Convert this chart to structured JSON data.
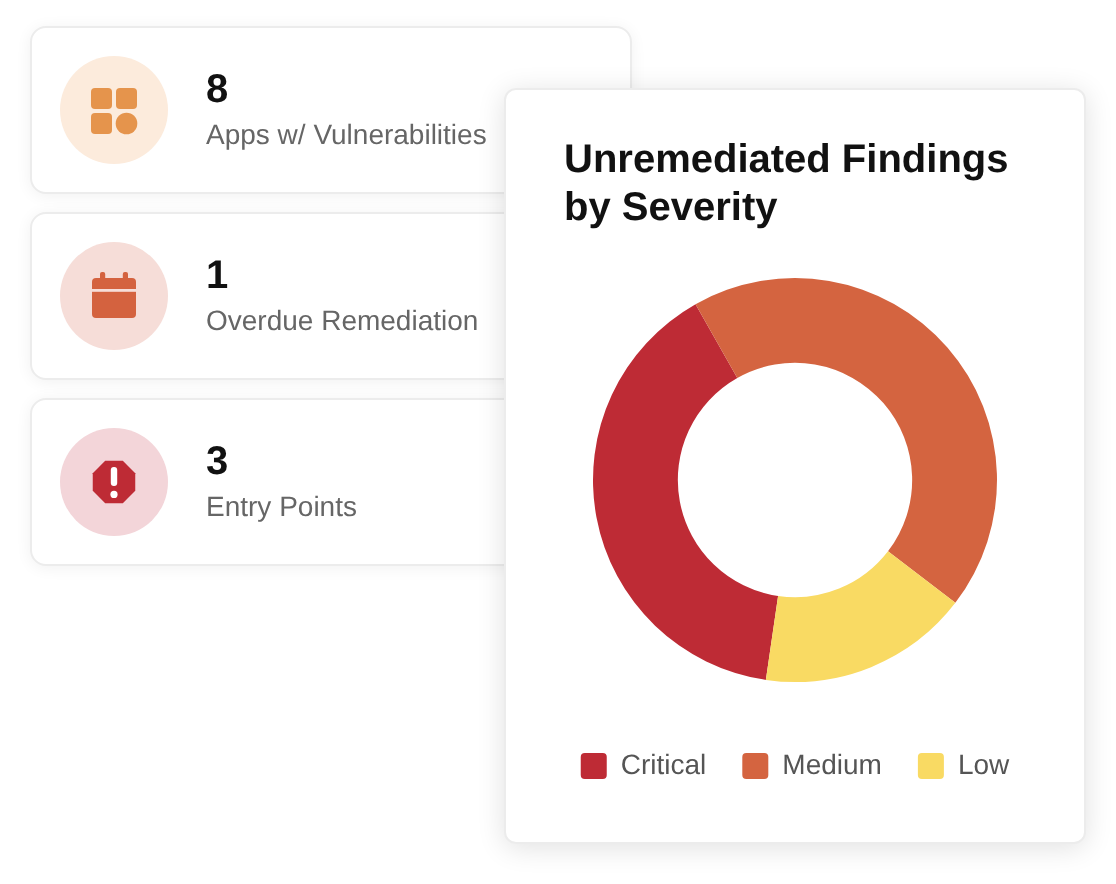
{
  "chart_data": [
    {
      "type": "other",
      "annotations": [
        "8",
        "Apps w/ Vulnerabilities",
        "1",
        "Overdue Remediation",
        "3",
        "Entry Points"
      ]
    },
    {
      "type": "donut",
      "title": "Unremediated Findings by Severity",
      "categories": [
        "Critical",
        "Medium",
        "Low"
      ],
      "values": [
        39.5,
        43.6,
        16.9
      ],
      "colors": [
        "#be2b35",
        "#d46440",
        "#f9da63"
      ],
      "legend": "bottom"
    }
  ]
}
